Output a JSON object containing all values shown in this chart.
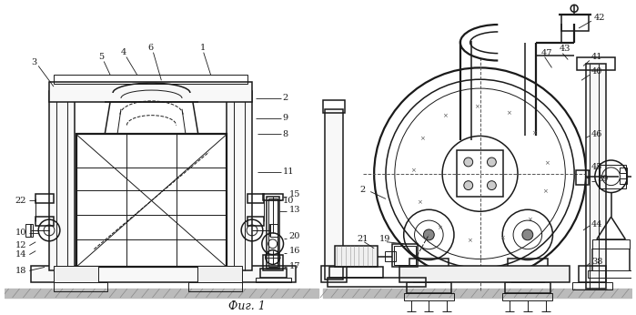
{
  "background_color": "#ffffff",
  "line_color": "#1a1a1a",
  "figsize": [
    6.99,
    3.46
  ],
  "dpi": 100,
  "caption": "Фиг. 1"
}
